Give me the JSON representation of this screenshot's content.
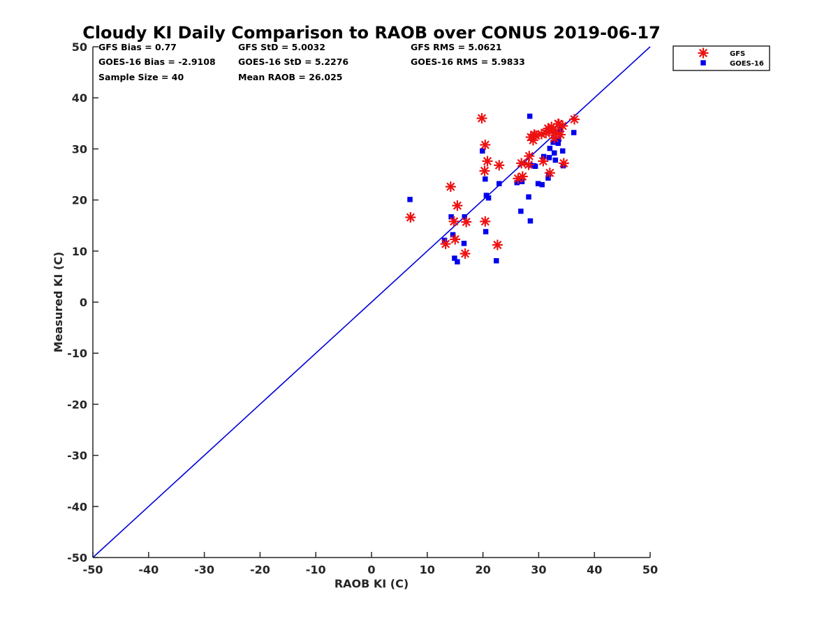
{
  "chart_data": {
    "type": "scatter",
    "title": "Cloudy KI Daily Comparison to RAOB over CONUS 2019-06-17",
    "xlabel": "RAOB KI (C)",
    "ylabel": "Measured KI (C)",
    "xlim": [
      -50,
      50
    ],
    "ylim": [
      -50,
      50
    ],
    "xticks": [
      "-50",
      "-40",
      "-30",
      "-20",
      "-10",
      "0",
      "10",
      "20",
      "30",
      "40",
      "50"
    ],
    "yticks": [
      "-50",
      "-40",
      "-30",
      "-20",
      "-10",
      "0",
      "10",
      "20",
      "30",
      "40",
      "50"
    ],
    "grid": false,
    "legend_position": "outside-top-right",
    "reference_line": {
      "from": [
        -50,
        -50
      ],
      "to": [
        50,
        50
      ],
      "color": "#0000dd"
    },
    "stats": [
      [
        "GFS Bias = 0.77",
        "GFS StD = 5.0032",
        "GFS RMS = 5.0621"
      ],
      [
        "GOES-16 Bias = -2.9108",
        "GOES-16 StD = 5.2276",
        "GOES-16 RMS = 5.9833"
      ],
      [
        "Sample Size = 40",
        "Mean RAOB = 26.025"
      ]
    ],
    "series": [
      {
        "name": "GFS",
        "marker": "asterisk",
        "color": "#ee1111",
        "x": [
          7.0,
          13.3,
          14.2,
          14.8,
          15.0,
          15.4,
          16.8,
          17.0,
          19.8,
          20.3,
          20.4,
          20.4,
          20.8,
          22.6,
          22.9,
          26.3,
          26.9,
          27.1,
          28.2,
          28.3,
          28.6,
          29.0,
          29.2,
          29.5,
          30.5,
          30.8,
          31.3,
          31.7,
          31.9,
          32.0,
          32.3,
          32.6,
          32.8,
          33.1,
          33.5,
          33.6,
          33.9,
          34.3,
          34.5,
          36.4
        ],
        "y": [
          16.6,
          11.4,
          22.6,
          15.8,
          12.3,
          18.9,
          9.5,
          15.7,
          36.0,
          25.7,
          30.8,
          15.8,
          27.6,
          11.2,
          26.8,
          24.2,
          27.2,
          24.6,
          26.9,
          28.6,
          32.3,
          31.7,
          32.8,
          32.6,
          32.9,
          27.6,
          33.1,
          34.0,
          33.6,
          25.3,
          34.3,
          33.7,
          32.1,
          33.3,
          34.9,
          34.9,
          32.8,
          34.5,
          27.2,
          35.8
        ]
      },
      {
        "name": "GOES-16",
        "marker": "square",
        "color": "#0000ee",
        "x": [
          6.9,
          13.1,
          14.3,
          14.6,
          14.9,
          15.4,
          16.6,
          16.7,
          19.9,
          20.4,
          20.5,
          20.6,
          21.0,
          22.4,
          22.9,
          26.1,
          26.8,
          27.0,
          28.2,
          28.4,
          28.5,
          28.5,
          29.1,
          29.4,
          29.9,
          30.6,
          30.9,
          31.7,
          31.8,
          31.9,
          32.0,
          32.6,
          32.8,
          33.0,
          33.5,
          33.6,
          33.8,
          34.3,
          34.4,
          36.3
        ],
        "y": [
          20.1,
          12.1,
          16.7,
          13.2,
          8.6,
          7.9,
          11.5,
          16.7,
          29.6,
          24.1,
          13.8,
          20.9,
          20.4,
          8.1,
          23.2,
          23.4,
          17.8,
          23.6,
          20.6,
          36.4,
          15.9,
          26.8,
          26.7,
          26.6,
          23.2,
          23.0,
          28.5,
          24.3,
          25.0,
          28.3,
          30.1,
          31.3,
          29.2,
          27.8,
          31.1,
          31.9,
          33.8,
          29.6,
          26.7,
          33.2
        ]
      }
    ]
  }
}
